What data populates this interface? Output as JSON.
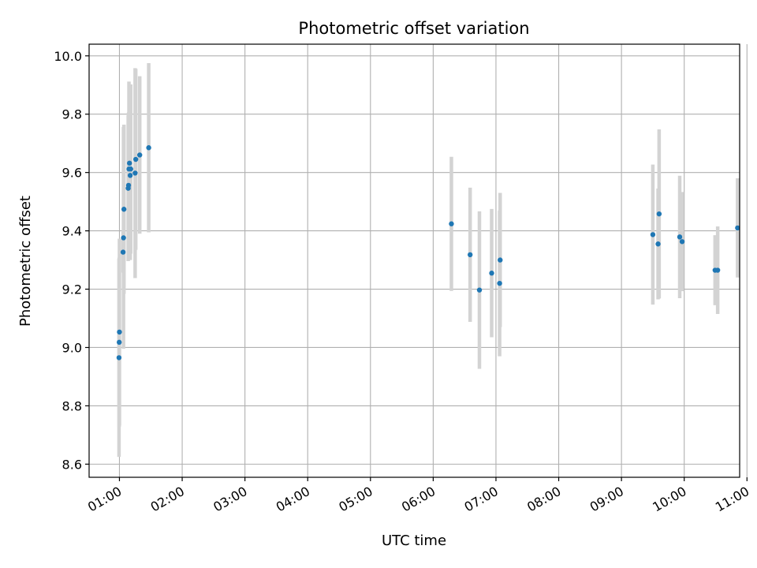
{
  "chart_data": {
    "type": "scatter",
    "title": "Photometric offset variation",
    "xlabel": "UTC time",
    "ylabel": "Photometric offset",
    "x_ticks": [
      "01:00",
      "02:00",
      "03:00",
      "04:00",
      "05:00",
      "06:00",
      "07:00",
      "08:00",
      "09:00",
      "10:00",
      "11:00"
    ],
    "y_ticks": [
      "8.6",
      "8.8",
      "9.0",
      "9.2",
      "9.4",
      "9.6",
      "9.8",
      "10.0"
    ],
    "xlim": [
      "00:31",
      "10:53"
    ],
    "ylim": [
      8.555,
      10.04
    ],
    "grid": true,
    "marker_color": "#1f77b4",
    "errorbar_color": "#d3d3d3",
    "series": [
      {
        "points": [
          {
            "x": "00:59:36",
            "y": 8.965,
            "err": 0.34
          },
          {
            "x": "00:59:48",
            "y": 9.018,
            "err": 0.29
          },
          {
            "x": "01:00:00",
            "y": 9.053,
            "err": 0.32
          },
          {
            "x": "01:03:30",
            "y": 9.327,
            "err": 0.07
          },
          {
            "x": "01:03:54",
            "y": 9.376,
            "err": 0.38
          },
          {
            "x": "01:04:18",
            "y": 9.474,
            "err": 0.29
          },
          {
            "x": "01:08:24",
            "y": 9.546,
            "err": 0.25
          },
          {
            "x": "01:08:42",
            "y": 9.556,
            "err": 0.25
          },
          {
            "x": "01:09:06",
            "y": 9.612,
            "err": 0.3
          },
          {
            "x": "01:09:36",
            "y": 9.632,
            "err": 0.27
          },
          {
            "x": "01:10:18",
            "y": 9.59,
            "err": 0.29
          },
          {
            "x": "01:10:48",
            "y": 9.612,
            "err": 0.29
          },
          {
            "x": "01:15:00",
            "y": 9.598,
            "err": 0.36
          },
          {
            "x": "01:15:36",
            "y": 9.645,
            "err": 0.31
          },
          {
            "x": "01:19:24",
            "y": 9.66,
            "err": 0.27
          },
          {
            "x": "01:28:00",
            "y": 9.685,
            "err": 0.29
          },
          {
            "x": "06:17:24",
            "y": 9.424,
            "err": 0.23
          },
          {
            "x": "06:35:18",
            "y": 9.318,
            "err": 0.23
          },
          {
            "x": "06:44:12",
            "y": 9.197,
            "err": 0.27
          },
          {
            "x": "06:55:54",
            "y": 9.255,
            "err": 0.22
          },
          {
            "x": "07:03:30",
            "y": 9.22,
            "err": 0.25
          },
          {
            "x": "07:04:00",
            "y": 9.3,
            "err": 0.23
          },
          {
            "x": "09:30:00",
            "y": 9.387,
            "err": 0.24
          },
          {
            "x": "09:35:00",
            "y": 9.355,
            "err": 0.19
          },
          {
            "x": "09:36:00",
            "y": 9.458,
            "err": 0.29
          },
          {
            "x": "09:55:42",
            "y": 9.379,
            "err": 0.21
          },
          {
            "x": "09:58:00",
            "y": 9.363,
            "err": 0.17
          },
          {
            "x": "10:29:30",
            "y": 9.265,
            "err": 0.12
          },
          {
            "x": "10:32:00",
            "y": 9.265,
            "err": 0.15
          },
          {
            "x": "10:51:00",
            "y": 9.41,
            "err": 0.17
          }
        ]
      }
    ]
  }
}
